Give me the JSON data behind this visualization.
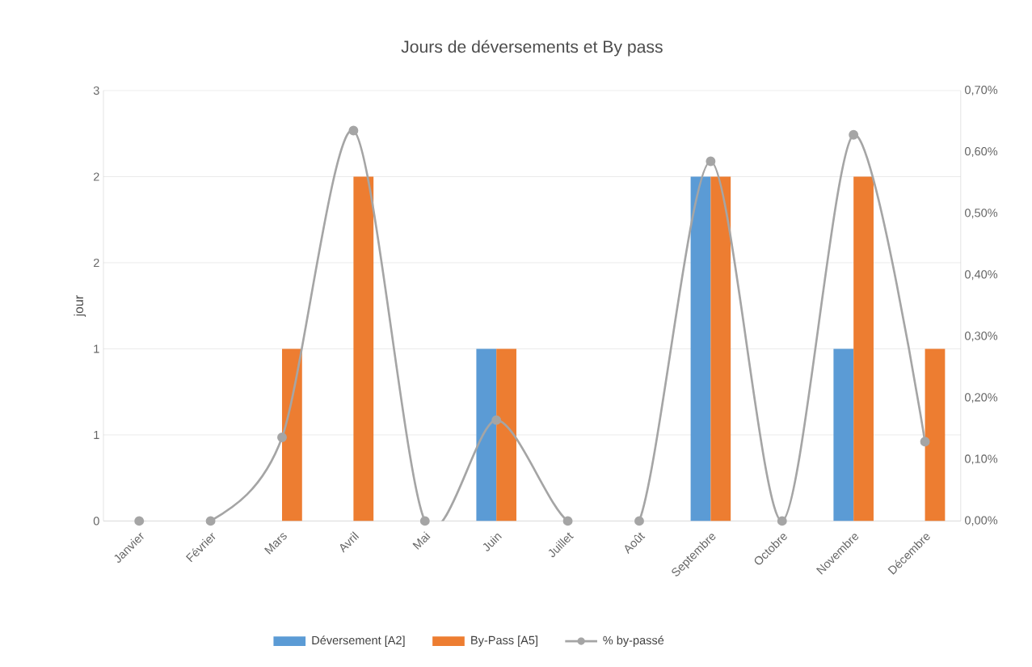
{
  "chart_data": {
    "type": "bar",
    "title": "Jours de déversements et By pass",
    "ylabel": "jour",
    "categories": [
      "Janvier",
      "Février",
      "Mars",
      "Avril",
      "Mai",
      "Juin",
      "Juillet",
      "Août",
      "Septembre",
      "Octobre",
      "Novembre",
      "Décembre"
    ],
    "series": [
      {
        "name": "Déversement [A2]",
        "color": "#5b9bd5",
        "values": [
          0,
          0,
          0,
          0,
          0,
          1,
          0,
          0,
          2,
          0,
          1,
          0
        ]
      },
      {
        "name": "By-Pass [A5]",
        "color": "#ed7d31",
        "values": [
          0,
          0,
          1,
          2,
          0,
          1,
          0,
          0,
          2,
          0,
          2,
          1
        ]
      },
      {
        "name": "% by-passé",
        "color": "#a5a5a5",
        "type": "line",
        "axis": "y2",
        "marker": "circle",
        "values": [
          0,
          0,
          0.136,
          0.635,
          0,
          0.164,
          0,
          0,
          0.585,
          0,
          0.628,
          0.129
        ]
      }
    ],
    "ylim": [
      0,
      2.5
    ],
    "yticks": [
      0,
      {
        "value": 0.5,
        "label": "1"
      },
      1,
      {
        "value": 1.5,
        "label": "2"
      },
      2,
      {
        "value": 2.5,
        "label": "3"
      }
    ],
    "y2lim": [
      0,
      0.7
    ],
    "y2ticks": [
      {
        "value": 0,
        "label": "0,00%"
      },
      {
        "value": 0.1,
        "label": "0,10%"
      },
      {
        "value": 0.2,
        "label": "0,20%"
      },
      {
        "value": 0.3,
        "label": "0,30%"
      },
      {
        "value": 0.4,
        "label": "0,40%"
      },
      {
        "value": 0.5,
        "label": "0,50%"
      },
      {
        "value": 0.6,
        "label": "0,60%"
      },
      {
        "value": 0.7,
        "label": "0,70%"
      }
    ],
    "grid": "y",
    "legend": "bottom"
  }
}
